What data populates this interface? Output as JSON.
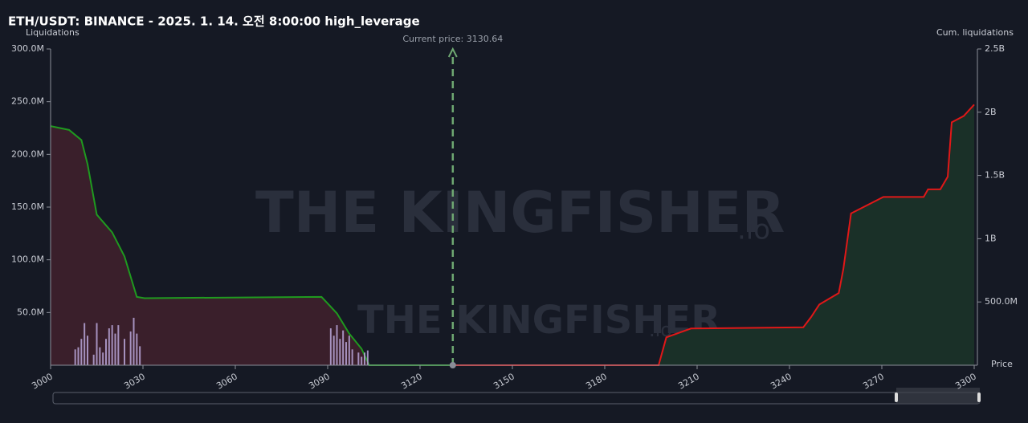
{
  "chart_data": {
    "type": "line",
    "title": "ETH/USDT: BINANCE - 2025. 1. 14. 오전 8:00:00 high_leverage",
    "y_label": "Liquidations",
    "y2_label": "Cum. liquidations",
    "x_label": "Price",
    "watermark": "THE KINGFISHER",
    "watermark_suffix": ".io",
    "annotation": {
      "text": "Current price: 3130.64",
      "x": 3130.64,
      "color": "#6fa872"
    },
    "xlim": [
      3000,
      3300
    ],
    "xticks": [
      3000,
      3030,
      3060,
      3090,
      3120,
      3150,
      3180,
      3210,
      3240,
      3270,
      3300
    ],
    "ylim": [
      0,
      300000000
    ],
    "yticks": [
      {
        "value": 50000000,
        "label": "50.0M"
      },
      {
        "value": 100000000,
        "label": "100.0M"
      },
      {
        "value": 150000000,
        "label": "150.0M"
      },
      {
        "value": 200000000,
        "label": "200.0M"
      },
      {
        "value": 250000000,
        "label": "250.0M"
      },
      {
        "value": 300000000,
        "label": "300.0M"
      }
    ],
    "y2lim": [
      0,
      2500000000
    ],
    "y2ticks": [
      {
        "value": 500000000,
        "label": "500.0M"
      },
      {
        "value": 1000000000,
        "label": "1B"
      },
      {
        "value": 1500000000,
        "label": "1.5B"
      },
      {
        "value": 2000000000,
        "label": "2B"
      },
      {
        "value": 2500000000,
        "label": "2.5B"
      }
    ],
    "series": [
      {
        "color": "#1f9a1f",
        "fill": "#3a1f2b",
        "axis": "y2",
        "x": [
          3000,
          3006,
          3010,
          3012,
          3015,
          3020,
          3024,
          3028,
          3030.5,
          3088,
          3093,
          3097,
          3101,
          3103.5,
          3130.64
        ],
        "values": [
          1890000000,
          1860000000,
          1780000000,
          1590000000,
          1190000000,
          1050000000,
          860000000,
          540000000,
          530000000,
          540000000,
          410000000,
          250000000,
          130000000,
          0,
          0
        ]
      },
      {
        "color": "#e01818",
        "fill": "#1a3028",
        "axis": "y2",
        "x": [
          3130.64,
          3197.5,
          3200,
          3208,
          3244.5,
          3247,
          3249.7,
          3256,
          3257.5,
          3260,
          3270.5,
          3283.6,
          3285,
          3289,
          3291.4,
          3292.7,
          3296.6,
          3300
        ],
        "values": [
          0,
          0,
          220000000,
          290000000,
          300000000,
          380000000,
          480000000,
          570000000,
          760000000,
          1200000000,
          1330000000,
          1330000000,
          1390000000,
          1390000000,
          1490000000,
          1920000000,
          1970000000,
          2060000000
        ]
      }
    ],
    "bars": {
      "color": "#b9a6d8",
      "x": [
        3008,
        3009,
        3010,
        3011,
        3012,
        3014,
        3015,
        3016,
        3017,
        3018,
        3019,
        3020,
        3021,
        3022,
        3024,
        3026,
        3027,
        3028,
        3029,
        3091,
        3092,
        3093,
        3094,
        3095,
        3096,
        3097,
        3098,
        3100,
        3101,
        3102,
        3103
      ],
      "values": [
        15000000,
        17000000,
        25000000,
        40000000,
        28000000,
        10000000,
        40000000,
        17000000,
        12000000,
        25000000,
        35000000,
        38000000,
        30000000,
        38000000,
        25000000,
        32000000,
        45000000,
        30000000,
        18000000,
        35000000,
        28000000,
        38000000,
        25000000,
        33000000,
        22000000,
        28000000,
        15000000,
        12000000,
        8000000,
        12000000,
        14000000
      ]
    }
  }
}
